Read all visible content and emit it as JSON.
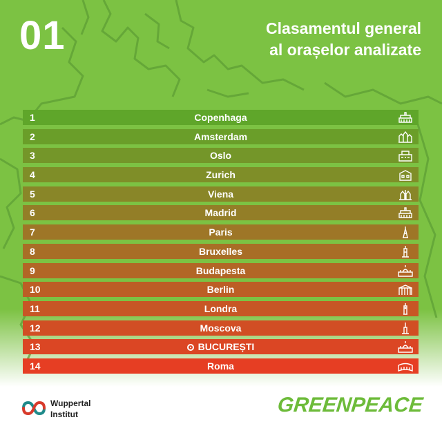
{
  "header": {
    "number": "01",
    "title_line1": "Clasamentul general",
    "title_line2": "al orașelor analizate"
  },
  "ranking": [
    {
      "rank": "1",
      "city": "Copenhaga",
      "icon": "palace-icon",
      "color": "#5fa62a"
    },
    {
      "rank": "2",
      "city": "Amsterdam",
      "icon": "canal-houses-icon",
      "color": "#6a9e29"
    },
    {
      "rank": "3",
      "city": "Oslo",
      "icon": "city-hall-icon",
      "color": "#749629"
    },
    {
      "rank": "4",
      "city": "Zurich",
      "icon": "building-icon",
      "color": "#7f8e28"
    },
    {
      "rank": "5",
      "city": "Viena",
      "icon": "cathedral-icon",
      "color": "#898628"
    },
    {
      "rank": "6",
      "city": "Madrid",
      "icon": "palace-icon",
      "color": "#937e27"
    },
    {
      "rank": "7",
      "city": "Paris",
      "icon": "eiffel-tower-icon",
      "color": "#9e7627"
    },
    {
      "rank": "8",
      "city": "Bruxelles",
      "icon": "tower-icon",
      "color": "#a86e26"
    },
    {
      "rank": "9",
      "city": "Budapesta",
      "icon": "parliament-icon",
      "color": "#b26626"
    },
    {
      "rank": "10",
      "city": "Berlin",
      "icon": "brandenburg-gate-icon",
      "color": "#bc5e25"
    },
    {
      "rank": "11",
      "city": "Londra",
      "icon": "big-ben-icon",
      "color": "#c75625"
    },
    {
      "rank": "12",
      "city": "Moscova",
      "icon": "spire-icon",
      "color": "#d14e24"
    },
    {
      "rank": "13",
      "city": "BUCUREȘTI",
      "icon": "parliament-icon",
      "color": "#db4624",
      "highlight": true
    },
    {
      "rank": "14",
      "city": "Roma",
      "icon": "colosseum-icon",
      "color": "#e63e23"
    }
  ],
  "footer": {
    "wuppertal_line1": "Wuppertal",
    "wuppertal_line2": "Institut",
    "greenpeace": "GREENPEACE"
  }
}
